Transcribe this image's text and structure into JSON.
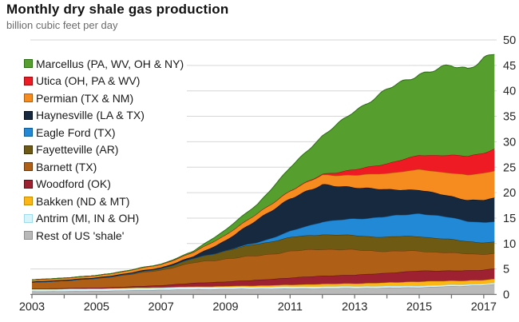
{
  "header": {
    "title": "Monthly dry shale gas production",
    "subtitle": "billion cubic feet per day"
  },
  "chart_data": {
    "type": "area",
    "stacked": true,
    "title": "Monthly dry shale gas production",
    "ylabel": "billion cubic feet per day",
    "xlabel": "",
    "grid": "horizontal",
    "legend_position": "inside-top-left",
    "xlim": [
      2003,
      2017.4
    ],
    "ylim": [
      0,
      50
    ],
    "y_ticks": [
      0,
      5,
      10,
      15,
      20,
      25,
      30,
      35,
      40,
      45,
      50
    ],
    "x_minor_ticks": [
      2003,
      2004,
      2005,
      2006,
      2007,
      2008,
      2009,
      2010,
      2011,
      2012,
      2013,
      2014,
      2015,
      2016,
      2017
    ],
    "x_tick_labels": [
      2003,
      2005,
      2007,
      2009,
      2011,
      2013,
      2015,
      2017
    ],
    "x": [
      2003,
      2004,
      2005,
      2006,
      2007,
      2008,
      2009,
      2010,
      2011,
      2012,
      2013,
      2014,
      2015,
      2016,
      2016.5,
      2017,
      2017.4
    ],
    "series_note": "values in billion cubic feet per day; listed bottom-to-top of stack",
    "series": [
      {
        "key": "rest_of_us_shale",
        "label": "Rest of US 'shale'",
        "color": "#b9b9b9",
        "edge": "#8e8e8e",
        "values": [
          0.6,
          0.65,
          0.7,
          0.8,
          0.9,
          1.0,
          1.05,
          1.1,
          1.15,
          1.2,
          1.25,
          1.3,
          1.4,
          1.6,
          1.7,
          1.85,
          1.95
        ]
      },
      {
        "key": "antrim",
        "label": "Antrim (MI, IN & OH)",
        "color": "#d8f3f9",
        "edge": "#9fdbe8",
        "values": [
          0.45,
          0.45,
          0.45,
          0.45,
          0.45,
          0.44,
          0.42,
          0.4,
          0.38,
          0.36,
          0.34,
          0.32,
          0.3,
          0.28,
          0.27,
          0.26,
          0.25
        ]
      },
      {
        "key": "bakken",
        "label": "Bakken (ND & MT)",
        "color": "#fdb714",
        "edge": "#c18a00",
        "values": [
          0.0,
          0.0,
          0.02,
          0.03,
          0.05,
          0.1,
          0.15,
          0.25,
          0.35,
          0.5,
          0.55,
          0.7,
          0.85,
          0.8,
          0.77,
          0.75,
          0.8
        ]
      },
      {
        "key": "woodford",
        "label": "Woodford (OK)",
        "color": "#9e2132",
        "edge": "#5c0f18",
        "values": [
          0.1,
          0.12,
          0.15,
          0.25,
          0.4,
          0.7,
          0.9,
          1.1,
          1.4,
          1.6,
          1.7,
          1.9,
          2.1,
          2.0,
          1.95,
          2.0,
          2.1
        ]
      },
      {
        "key": "barnett",
        "label": "Barnett (TX)",
        "color": "#b05f16",
        "edge": "#6b390a",
        "values": [
          1.2,
          1.5,
          1.8,
          2.4,
          3.0,
          4.0,
          4.5,
          4.8,
          5.2,
          5.3,
          4.9,
          4.3,
          3.9,
          3.5,
          3.3,
          3.1,
          3.0
        ]
      },
      {
        "key": "fayetteville",
        "label": "Fayetteville (AR)",
        "color": "#6e5a13",
        "edge": "#3d3208",
        "values": [
          0.0,
          0.0,
          0.02,
          0.1,
          0.3,
          0.8,
          1.6,
          2.3,
          2.7,
          2.9,
          2.8,
          2.8,
          2.9,
          2.6,
          2.45,
          2.3,
          2.2
        ]
      },
      {
        "key": "eagle_ford",
        "label": "Eagle Ford (TX)",
        "color": "#2289d6",
        "edge": "#0e5a95",
        "values": [
          0.0,
          0.0,
          0.0,
          0.0,
          0.0,
          0.0,
          0.02,
          0.3,
          1.2,
          2.5,
          3.3,
          4.0,
          4.5,
          4.3,
          4.0,
          3.9,
          4.0
        ]
      },
      {
        "key": "haynesville",
        "label": "Haynesville (LA & TX)",
        "color": "#17293f",
        "edge": "#040d17",
        "values": [
          0.15,
          0.15,
          0.15,
          0.18,
          0.2,
          0.4,
          2.0,
          4.5,
          6.5,
          7.2,
          6.2,
          5.3,
          4.6,
          4.2,
          4.1,
          4.4,
          4.7
        ]
      },
      {
        "key": "permian",
        "label": "Permian (TX & NM)",
        "color": "#f68b1f",
        "edge": "#b05e0b",
        "values": [
          0.35,
          0.38,
          0.4,
          0.5,
          0.6,
          0.8,
          1.1,
          1.2,
          1.5,
          1.9,
          2.4,
          3.2,
          4.0,
          4.6,
          4.9,
          5.3,
          5.5
        ]
      },
      {
        "key": "utica",
        "label": "Utica (OH, PA & WV)",
        "color": "#ee1b24",
        "edge": "#9c0a10",
        "values": [
          0.0,
          0.0,
          0.0,
          0.0,
          0.0,
          0.0,
          0.0,
          0.0,
          0.05,
          0.15,
          1.1,
          1.9,
          2.8,
          3.5,
          3.7,
          4.0,
          4.3
        ]
      },
      {
        "key": "marcellus",
        "label": "Marcellus (PA, WV, OH & NY)",
        "color": "#569e2d",
        "edge": "#2c6e14",
        "values": [
          0.0,
          0.0,
          0.0,
          0.02,
          0.05,
          0.2,
          1.0,
          1.8,
          4.5,
          7.5,
          11.5,
          14.5,
          16.0,
          17.5,
          17.3,
          18.5,
          18.5
        ]
      }
    ],
    "axis_colors": {
      "grid": "#d6d6d6",
      "axis_line": "#737373",
      "tick_label": "#262626"
    }
  }
}
